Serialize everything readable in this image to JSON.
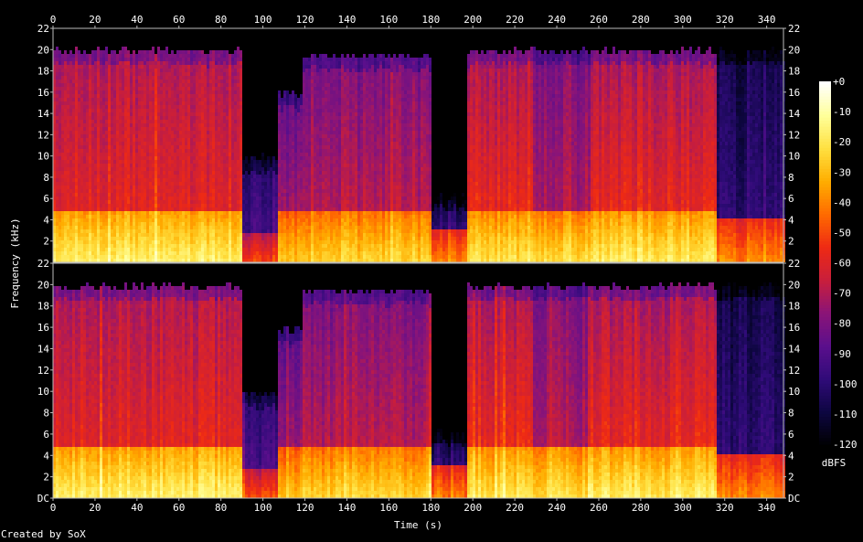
{
  "footer": "Created by SoX",
  "chart_data": {
    "type": "heatmap",
    "title": "",
    "xlabel": "Time (s)",
    "ylabel": "Frequency (kHz)",
    "xlim": [
      0,
      348
    ],
    "ylim_khz": [
      0,
      22
    ],
    "x_ticks": [
      0,
      20,
      40,
      60,
      80,
      100,
      120,
      140,
      160,
      180,
      200,
      220,
      240,
      260,
      280,
      300,
      320,
      340
    ],
    "y_tick_labels": [
      "DC",
      "2",
      "4",
      "6",
      "8",
      "10",
      "12",
      "14",
      "16",
      "18",
      "20",
      "22"
    ],
    "channels": 2,
    "colorbar": {
      "label": "dBFS",
      "min": -120,
      "max": 0,
      "tick_labels": [
        "+0",
        "-10",
        "-20",
        "-30",
        "-40",
        "-50",
        "-60",
        "-70",
        "-80",
        "-90",
        "-100",
        "-110",
        "-120"
      ],
      "colors": [
        "#000000",
        "#0d0640",
        "#2f0b78",
        "#5a0f8c",
        "#8a1478",
        "#c81e3c",
        "#ee2a14",
        "#ff6a00",
        "#ffad00",
        "#ffe040",
        "#ffff9a",
        "#ffffff"
      ]
    },
    "segments": [
      {
        "start": 0,
        "end": 90,
        "cutoff_khz": 20,
        "body_db": -58,
        "upper_db": -70,
        "low_db": -24,
        "low_band_khz": 4.5
      },
      {
        "start": 90,
        "end": 106,
        "cutoff_khz": 10,
        "body_db": -92,
        "upper_db": -100,
        "low_db": -58,
        "low_band_khz": 2.5
      },
      {
        "start": 106,
        "end": 118,
        "cutoff_khz": 16,
        "body_db": -72,
        "upper_db": -85,
        "low_db": -35,
        "low_band_khz": 4.5
      },
      {
        "start": 118,
        "end": 180,
        "cutoff_khz": 19.5,
        "body_db": -68,
        "upper_db": -80,
        "low_db": -32,
        "low_band_khz": 4.5
      },
      {
        "start": 180,
        "end": 197,
        "cutoff_khz": 6.5,
        "body_db": -100,
        "upper_db": -112,
        "low_db": -50,
        "low_band_khz": 3
      },
      {
        "start": 197,
        "end": 228,
        "cutoff_khz": 20,
        "body_db": -56,
        "upper_db": -72,
        "low_db": -28,
        "low_band_khz": 4.5
      },
      {
        "start": 228,
        "end": 256,
        "cutoff_khz": 20,
        "body_db": -70,
        "upper_db": -80,
        "low_db": -30,
        "low_band_khz": 4.5
      },
      {
        "start": 256,
        "end": 316,
        "cutoff_khz": 20,
        "body_db": -57,
        "upper_db": -72,
        "low_db": -26,
        "low_band_khz": 4.5
      },
      {
        "start": 316,
        "end": 348,
        "cutoff_khz": 20,
        "body_db": -100,
        "upper_db": -108,
        "low_db": -48,
        "low_band_khz": 4
      }
    ]
  }
}
